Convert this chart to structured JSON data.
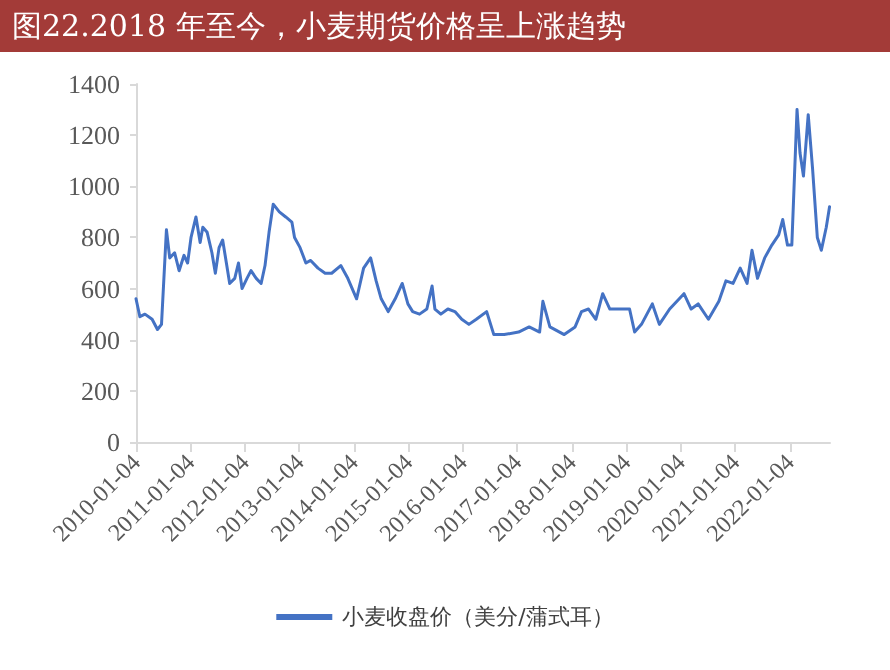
{
  "chart_data": {
    "type": "line",
    "title": "图22.2018 年至今，小麦期货价格呈上涨趋势",
    "x": [
      "2010-01-04",
      "2010-01-30",
      "2010-03-05",
      "2010-04-22",
      "2010-05-28",
      "2010-06-24",
      "2010-07-27",
      "2010-08-18",
      "2010-09-20",
      "2010-10-20",
      "2010-11-22",
      "2010-12-16",
      "2011-01-08",
      "2011-02-10",
      "2011-03-10",
      "2011-03-28",
      "2011-04-26",
      "2011-05-28",
      "2011-06-20",
      "2011-07-15",
      "2011-08-08",
      "2011-09-02",
      "2011-09-24",
      "2011-10-28",
      "2011-11-22",
      "2011-12-16",
      "2012-01-18",
      "2012-02-14",
      "2012-03-20",
      "2012-04-22",
      "2012-05-18",
      "2012-06-14",
      "2012-07-12",
      "2012-08-22",
      "2012-10-04",
      "2012-11-14",
      "2012-12-02",
      "2013-01-08",
      "2013-02-16",
      "2013-03-20",
      "2013-05-08",
      "2013-06-25",
      "2013-08-08",
      "2013-10-08",
      "2013-11-24",
      "2014-01-22",
      "2014-03-10",
      "2014-04-26",
      "2014-06-02",
      "2014-07-06",
      "2014-08-22",
      "2014-10-08",
      "2014-11-24",
      "2015-01-01",
      "2015-02-02",
      "2015-03-20",
      "2015-05-08",
      "2015-06-12",
      "2015-07-01",
      "2015-08-10",
      "2015-09-26",
      "2015-11-12",
      "2015-12-28",
      "2016-02-14",
      "2016-04-04",
      "2016-06-12",
      "2016-07-30",
      "2016-10-08",
      "2017-01-12",
      "2017-03-24",
      "2017-06-02",
      "2017-06-24",
      "2017-08-10",
      "2017-11-14",
      "2018-01-26",
      "2018-03-10",
      "2018-04-26",
      "2018-06-14",
      "2018-07-30",
      "2018-09-16",
      "2018-11-28",
      "2019-01-26",
      "2019-03-01",
      "2019-04-16",
      "2019-06-28",
      "2019-08-14",
      "2019-10-22",
      "2020-01-26",
      "2020-03-14",
      "2020-04-30",
      "2020-07-08",
      "2020-09-16",
      "2020-11-02",
      "2020-12-20",
      "2021-02-06",
      "2021-03-24",
      "2021-04-26",
      "2021-06-02",
      "2021-07-20",
      "2021-09-06",
      "2021-10-22",
      "2021-11-18",
      "2021-12-20",
      "2022-01-18",
      "2022-02-22",
      "2022-03-14",
      "2022-04-06",
      "2022-05-08",
      "2022-06-06",
      "2022-07-08",
      "2022-08-04",
      "2022-09-06",
      "2022-09-28"
    ],
    "series": [
      {
        "name": "小麦收盘价（美分/蒲式耳）",
        "color": "#4472c4",
        "values": [
          560,
          490,
          500,
          480,
          440,
          460,
          830,
          720,
          740,
          670,
          730,
          700,
          800,
          880,
          780,
          840,
          820,
          740,
          660,
          760,
          790,
          700,
          620,
          640,
          700,
          600,
          640,
          670,
          640,
          620,
          690,
          820,
          930,
          900,
          880,
          860,
          800,
          760,
          700,
          710,
          680,
          660,
          660,
          690,
          640,
          560,
          680,
          720,
          630,
          560,
          510,
          560,
          620,
          540,
          510,
          500,
          520,
          610,
          520,
          500,
          520,
          510,
          480,
          460,
          480,
          510,
          420,
          420,
          430,
          450,
          430,
          550,
          450,
          420,
          450,
          510,
          520,
          480,
          580,
          520,
          520,
          520,
          430,
          460,
          540,
          460,
          520,
          580,
          520,
          540,
          480,
          550,
          630,
          620,
          680,
          620,
          750,
          640,
          720,
          770,
          810,
          870,
          770,
          770,
          1300,
          1130,
          1040,
          1280,
          1070,
          800,
          750,
          840,
          920
        ]
      }
    ],
    "xlim": [
      "2010-01-04",
      "2022-10-01"
    ],
    "xticks": [
      "2010-01-04",
      "2011-01-04",
      "2012-01-04",
      "2013-01-04",
      "2014-01-04",
      "2015-01-04",
      "2016-01-04",
      "2017-01-04",
      "2018-01-04",
      "2019-01-04",
      "2020-01-04",
      "2021-01-04",
      "2022-01-04"
    ],
    "ylim": [
      0,
      1400
    ],
    "yticks": [
      0,
      200,
      400,
      600,
      800,
      1000,
      1200,
      1400
    ],
    "grid": false,
    "legend": "bottom",
    "marker": "none",
    "line_style": "solid"
  }
}
